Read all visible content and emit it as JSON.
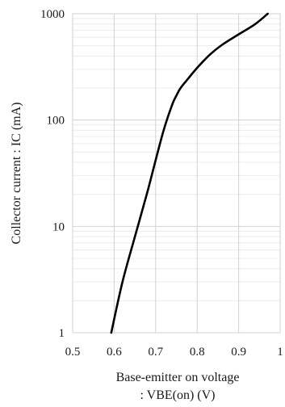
{
  "chart_data": {
    "type": "line",
    "title": "",
    "xlabel_lines": [
      "Base-emitter on voltage",
      ": VBE(on) (V)"
    ],
    "ylabel": "Collector current : IC (mA)",
    "xlim": [
      0.5,
      1.0
    ],
    "ylim": [
      1,
      1000
    ],
    "y_scale": "log",
    "grid": true,
    "x_ticks": [
      0.5,
      0.6,
      0.7,
      0.8,
      0.9,
      1.0
    ],
    "x_tick_labels": [
      "0.5",
      "0.6",
      "0.7",
      "0.8",
      "0.9",
      "1"
    ],
    "y_ticks": [
      1,
      10,
      100,
      1000
    ],
    "y_tick_labels": [
      "1",
      "10",
      "100",
      "1000"
    ],
    "series": [
      {
        "color": "#000000",
        "x": [
          0.593,
          0.62,
          0.65,
          0.68,
          0.7,
          0.72,
          0.74,
          0.75,
          0.76,
          0.78,
          0.8,
          0.83,
          0.86,
          0.9,
          0.94,
          0.97
        ],
        "y": [
          1,
          3,
          8,
          21,
          42,
          82,
          140,
          170,
          200,
          250,
          310,
          410,
          510,
          640,
          800,
          1000
        ]
      }
    ]
  }
}
